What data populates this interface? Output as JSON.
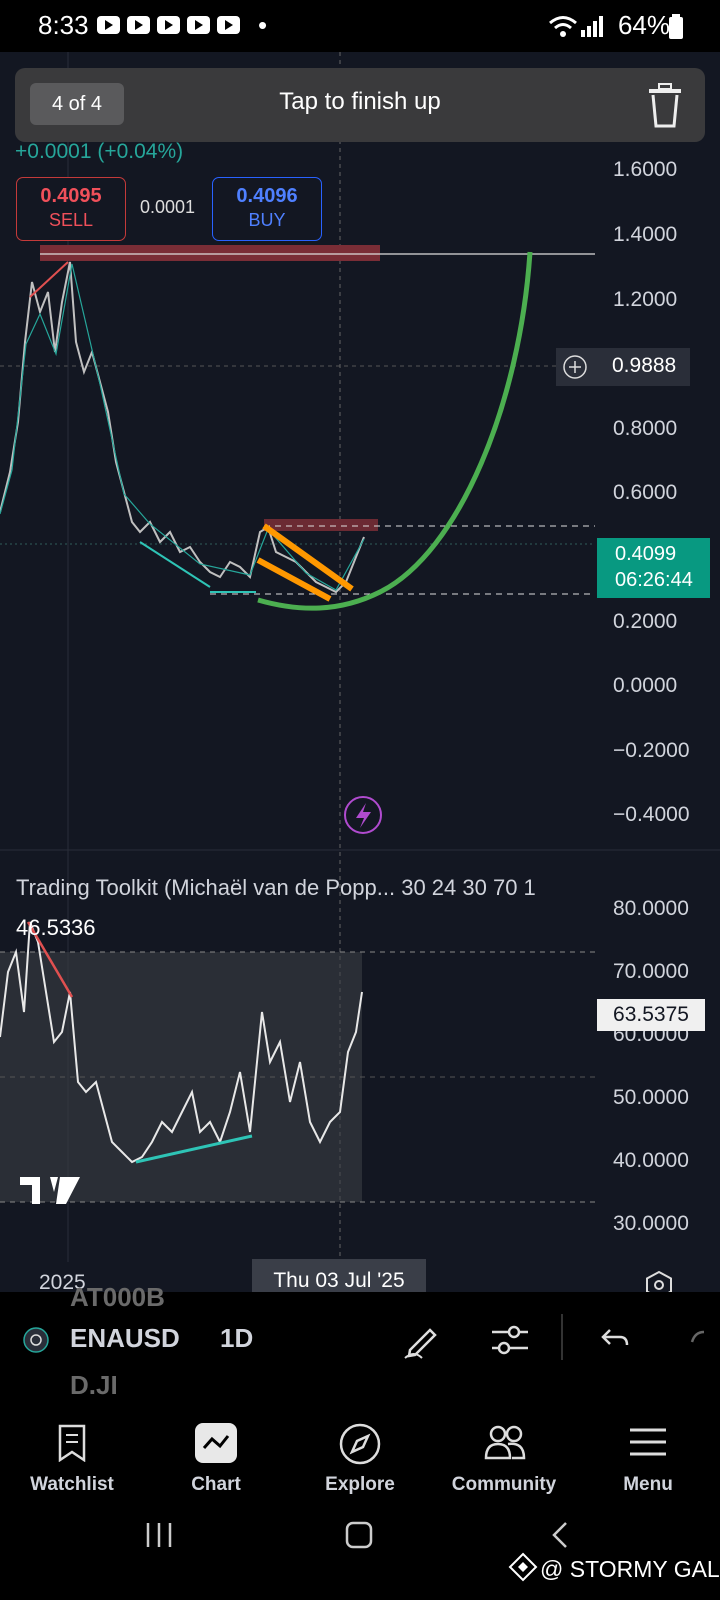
{
  "status_bar": {
    "time": "8:33",
    "dot": "•",
    "battery": "64%"
  },
  "hint_banner": {
    "counter": "4 of 4",
    "text": "Tap to finish up"
  },
  "quote": {
    "change": "+0.0001 (+0.04%)",
    "sell_price": "0.4095",
    "sell_label": "SELL",
    "spread": "0.0001",
    "buy_price": "0.4096",
    "buy_label": "BUY"
  },
  "price_axis": {
    "labels": [
      "1.6000",
      "1.4000",
      "1.2000",
      "0.8000",
      "0.6000",
      "0.2000",
      "0.0000",
      "−0.2000",
      "−0.4000"
    ],
    "crosshair_value": "0.9888",
    "last_price": "0.4099",
    "countdown": "06:26:44"
  },
  "indicator": {
    "title": "Trading Toolkit (Michaël van de Popp... 30 24 30 70 1",
    "value": "46.5336",
    "axis_labels": [
      "80.0000",
      "70.0000",
      "60.0000",
      "50.0000",
      "40.0000",
      "30.0000"
    ],
    "current_value": "63.5375"
  },
  "time_axis": {
    "year_label": "2025",
    "crosshair_date": "Thu 03 Jul '25"
  },
  "toolbar": {
    "symbol": "ENAUSD",
    "symbol_prev": "AT000B",
    "symbol_next": "D.JI",
    "interval": "1D"
  },
  "bottom_nav": [
    {
      "label": "Watchlist",
      "icon": "watchlist-icon"
    },
    {
      "label": "Chart",
      "icon": "chart-icon"
    },
    {
      "label": "Explore",
      "icon": "compass-icon"
    },
    {
      "label": "Community",
      "icon": "community-icon"
    },
    {
      "label": "Menu",
      "icon": "menu-icon"
    }
  ],
  "watermark": "@ STORMY GAL",
  "colors": {
    "bg": "#131722",
    "up": "#26a69a",
    "sell": "#f0505a",
    "buy": "#2962ff",
    "arc": "#4caf50",
    "channel": "#ff9800"
  }
}
